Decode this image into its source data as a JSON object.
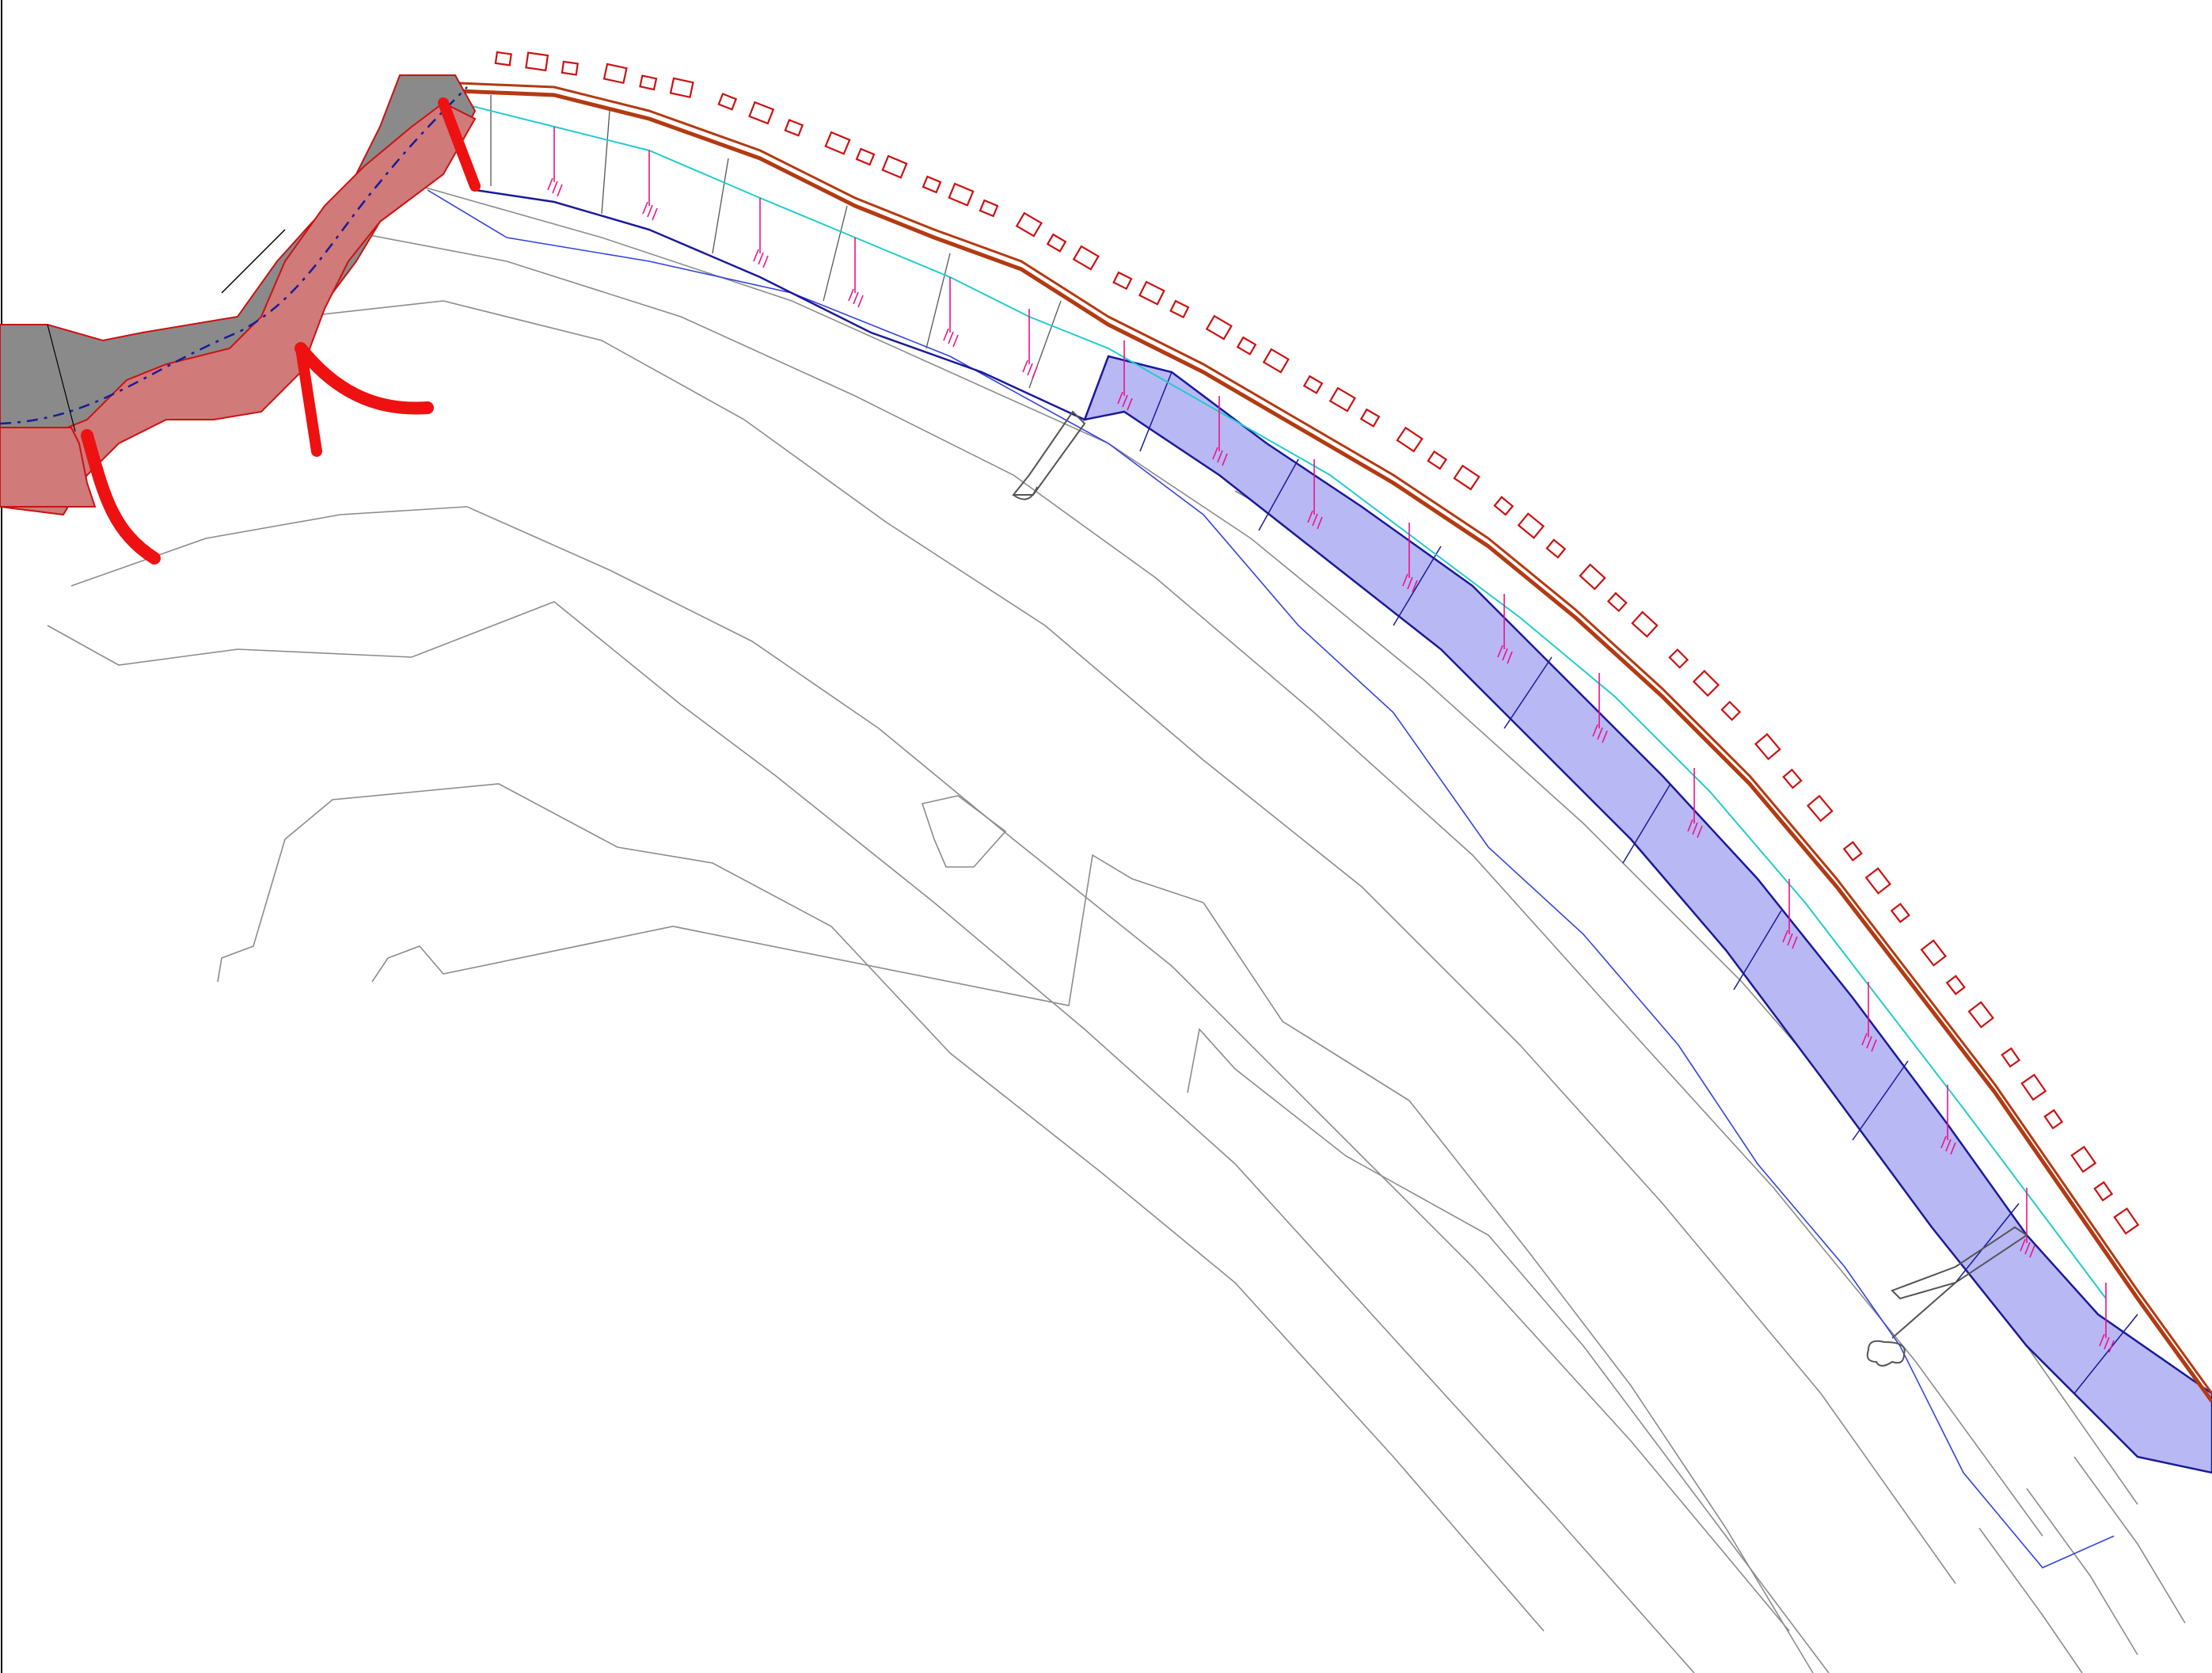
{
  "drawing": {
    "type": "cad-coastal-plan",
    "text_visible": false
  },
  "palette": {
    "background": "#ffffff",
    "contour": "#8c8c8c",
    "water_line": "#3344dd",
    "boundary": "#1a1a99",
    "buildings": "#cc1111",
    "promenade": "#b33a12",
    "beach_fill": "#b8b8f5",
    "breakwater": "#ee1111",
    "rock_fill": "#8a8a8a",
    "hatch": "#dd2222",
    "cyan_line": "#22cccc",
    "dimension": "#ee1188"
  },
  "layers": [
    {
      "name": "bathymetric-contours",
      "visible": true
    },
    {
      "name": "water-line",
      "visible": true
    },
    {
      "name": "beach-nourishment-area",
      "visible": true
    },
    {
      "name": "buildings",
      "visible": true
    },
    {
      "name": "promenade",
      "visible": true
    },
    {
      "name": "harbour-breakwaters",
      "visible": true
    },
    {
      "name": "piers",
      "visible": true
    }
  ]
}
